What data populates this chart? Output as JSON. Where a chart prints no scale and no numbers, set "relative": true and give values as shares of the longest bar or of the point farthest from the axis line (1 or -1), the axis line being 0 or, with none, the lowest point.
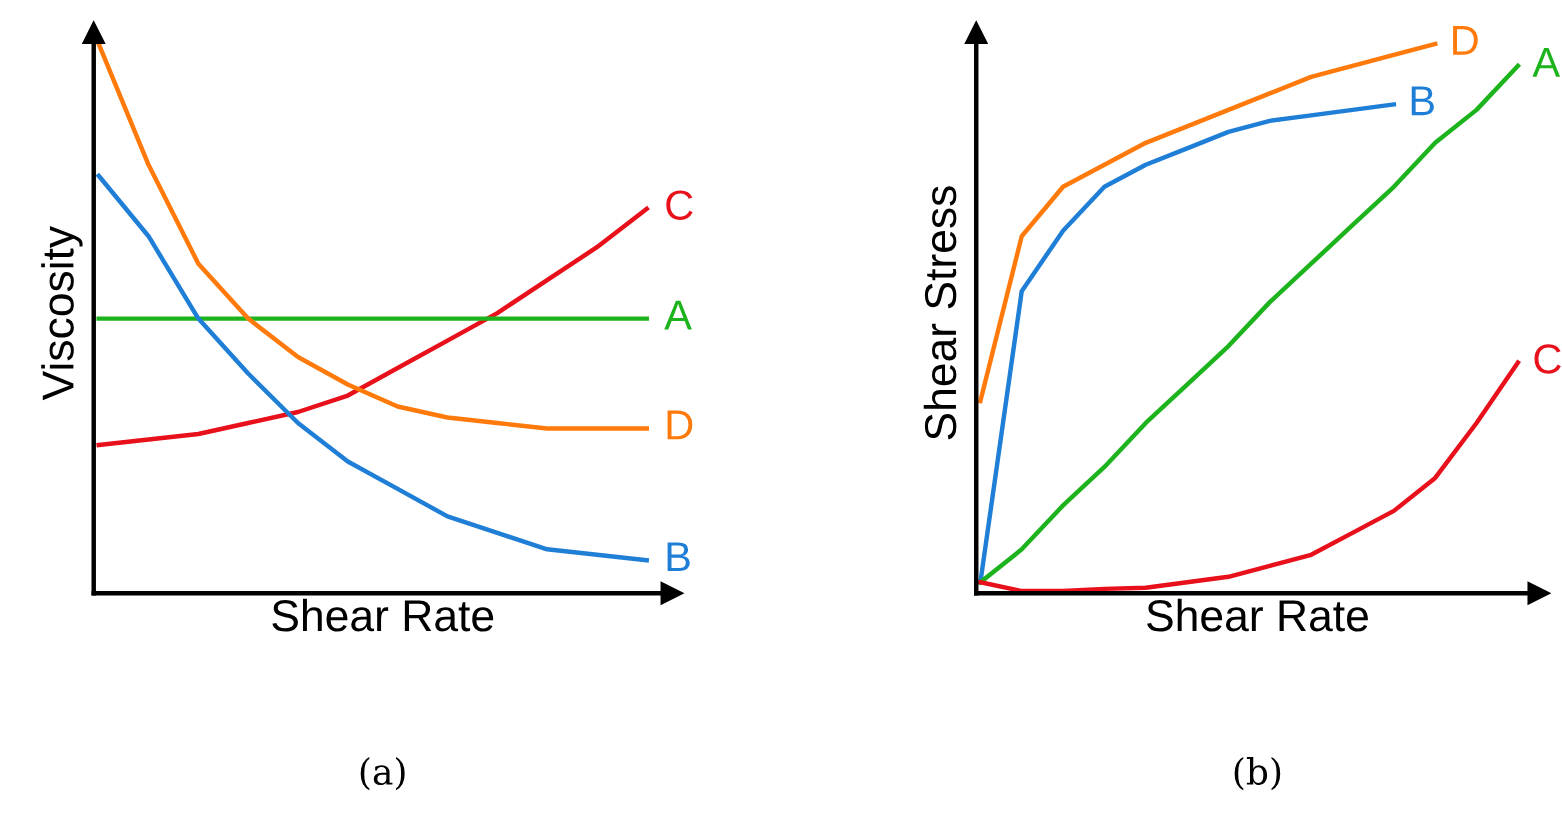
{
  "chart_data": [
    {
      "type": "line",
      "relative": true,
      "xlabel": "Shear Rate",
      "ylabel": "Viscosity",
      "annotations": [
        "(a)"
      ],
      "legend": false,
      "categories": [
        null,
        null,
        null,
        null,
        null,
        null,
        null,
        null,
        null,
        null,
        null,
        null
      ],
      "series": [
        {
          "name": "C",
          "color": "#e8101a",
          "values": [
            0.27,
            0.28,
            0.29,
            0.31,
            0.33,
            0.36,
            0.41,
            0.46,
            0.51,
            0.57,
            0.63,
            0.7
          ]
        },
        {
          "name": "A",
          "color": "#1db31d",
          "values": [
            0.5,
            0.5,
            0.5,
            0.5,
            0.5,
            0.5,
            0.5,
            0.5,
            0.5,
            0.5,
            0.5,
            0.5
          ]
        },
        {
          "name": "D",
          "color": "#ff7a0a",
          "values": [
            1.0,
            0.78,
            0.6,
            0.5,
            0.43,
            0.38,
            0.34,
            0.32,
            0.31,
            0.3,
            0.3,
            0.3
          ]
        },
        {
          "name": "B",
          "color": "#1f7fd6",
          "values": [
            0.76,
            0.65,
            0.5,
            0.4,
            0.31,
            0.24,
            0.19,
            0.14,
            0.11,
            0.08,
            0.07,
            0.06
          ]
        }
      ]
    },
    {
      "type": "line",
      "relative": true,
      "xlabel": "Shear Rate",
      "ylabel": "Shear Stress",
      "annotations": [
        "(b)"
      ],
      "legend": false,
      "categories": [
        null,
        null,
        null,
        null,
        null,
        null,
        null,
        null,
        null,
        null,
        null,
        null,
        null,
        null
      ],
      "series": [
        {
          "name": "D",
          "color": "#ff7a0a",
          "values": [
            0.35,
            0.65,
            0.74,
            0.78,
            0.82,
            0.85,
            0.88,
            0.91,
            0.94,
            0.96,
            0.98,
            1.0,
            null,
            null
          ]
        },
        {
          "name": "B",
          "color": "#1f7fd6",
          "values": [
            0.02,
            0.55,
            0.66,
            0.74,
            0.78,
            0.81,
            0.84,
            0.86,
            0.87,
            0.88,
            0.89,
            null,
            null,
            null
          ]
        },
        {
          "name": "A",
          "color": "#1db31d",
          "values": [
            0.02,
            0.08,
            0.16,
            0.23,
            0.31,
            0.38,
            0.45,
            0.53,
            0.6,
            0.67,
            0.74,
            0.82,
            0.88,
            0.96
          ]
        },
        {
          "name": "C",
          "color": "#e8101a",
          "values": [
            0.02,
            0.004,
            0.004,
            0.008,
            0.01,
            0.02,
            0.03,
            0.05,
            0.07,
            0.11,
            0.15,
            0.21,
            0.31,
            0.42
          ]
        }
      ]
    }
  ]
}
